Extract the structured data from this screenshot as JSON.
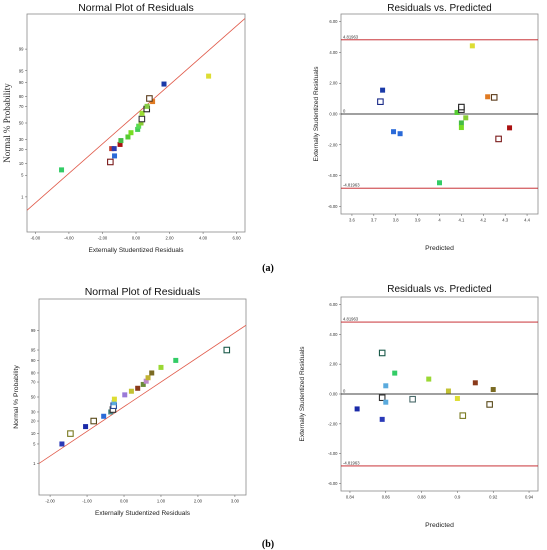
{
  "panel_labels": {
    "a": "(a)",
    "b": "(b)"
  },
  "colors": {
    "ref_line": "#e05a4a",
    "limit_line": "#c0161b",
    "zero_line": "#000000",
    "frame": "#8a8a8a"
  },
  "chart_data": [
    {
      "id": "a-normal",
      "type": "scatter",
      "title": "Normal Plot of Residuals",
      "xlabel": "Externally Studentized Residuals",
      "ylabel": "Normal % Probability",
      "xlim": [
        -6.5,
        6.5
      ],
      "x_ticks": [
        "-6.00",
        "-4.00",
        "-2.00",
        "0.00",
        "2.00",
        "4.00",
        "6.00"
      ],
      "x_tick_values": [
        -6,
        -4,
        -2,
        0,
        2,
        4,
        6
      ],
      "y_ticks": [
        "1",
        "5",
        "10",
        "20",
        "30",
        "50",
        "70",
        "80",
        "90",
        "95",
        "99"
      ],
      "y_tick_values": [
        1,
        5,
        10,
        20,
        30,
        50,
        70,
        80,
        90,
        95,
        99
      ],
      "ref_line": [
        [
          -6.5,
          0.3
        ],
        [
          6.5,
          99.95
        ]
      ],
      "points": [
        {
          "x": -4.44,
          "y": 7,
          "color": "#33cc66",
          "hollow": false
        },
        {
          "x": -1.53,
          "y": 11,
          "color": "#7a1a1a",
          "hollow": true
        },
        {
          "x": -1.28,
          "y": 15,
          "color": "#2a6ad8",
          "hollow": false
        },
        {
          "x": -1.45,
          "y": 21,
          "color": "#c0392b",
          "hollow": false
        },
        {
          "x": -1.3,
          "y": 21,
          "color": "#2a3ab0",
          "hollow": false
        },
        {
          "x": -0.95,
          "y": 25,
          "color": "#aa1111",
          "hollow": false
        },
        {
          "x": -0.9,
          "y": 29,
          "color": "#44bb44",
          "hollow": false
        },
        {
          "x": -0.48,
          "y": 33,
          "color": "#55cc33",
          "hollow": false
        },
        {
          "x": -0.3,
          "y": 38,
          "color": "#77dd22",
          "hollow": false
        },
        {
          "x": 0.1,
          "y": 42,
          "color": "#44cc55",
          "hollow": false
        },
        {
          "x": 0.16,
          "y": 46,
          "color": "#55dd55",
          "hollow": false
        },
        {
          "x": 0.3,
          "y": 50,
          "color": "#88cc33",
          "hollow": false
        },
        {
          "x": 0.35,
          "y": 55,
          "color": "#333333",
          "hollow": true
        },
        {
          "x": 0.36,
          "y": 62,
          "color": "#99dd33",
          "hollow": false
        },
        {
          "x": 0.64,
          "y": 67,
          "color": "#222222",
          "hollow": true
        },
        {
          "x": 0.66,
          "y": 70,
          "color": "#88cc44",
          "hollow": false
        },
        {
          "x": 0.99,
          "y": 75,
          "color": "#e07a22",
          "hollow": false
        },
        {
          "x": 0.8,
          "y": 78,
          "color": "#5a3a1a",
          "hollow": true
        },
        {
          "x": 1.67,
          "y": 89,
          "color": "#1a3aa8",
          "hollow": false
        },
        {
          "x": 4.33,
          "y": 93,
          "color": "#dddd33",
          "hollow": false
        }
      ]
    },
    {
      "id": "a-rvp",
      "type": "scatter",
      "title": "Residuals vs. Predicted",
      "xlabel": "Predicted",
      "ylabel": "Externally Studentized Residuals",
      "xlim": [
        3.55,
        4.45
      ],
      "ylim": [
        -6.5,
        6.5
      ],
      "x_ticks": [
        "3.6",
        "3.7",
        "3.8",
        "3.9",
        "4",
        "4.1",
        "4.2",
        "4.3",
        "4.4"
      ],
      "x_tick_values": [
        3.6,
        3.7,
        3.8,
        3.9,
        4.0,
        4.1,
        4.2,
        4.3,
        4.4
      ],
      "y_ticks": [
        "-6.00",
        "-4.00",
        "-2.00",
        "0.00",
        "2.00",
        "4.00",
        "6.00"
      ],
      "y_tick_values": [
        -6,
        -4,
        -2,
        0,
        2,
        4,
        6
      ],
      "limits": [
        4.81963,
        -4.81963
      ],
      "limit_labels": [
        "4.81963",
        "-4.81963"
      ],
      "zero_label": "0",
      "points": [
        {
          "x": 3.74,
          "y": 1.55,
          "color": "#1a3aa8",
          "hollow": false
        },
        {
          "x": 3.73,
          "y": 0.8,
          "color": "#1a2a88",
          "hollow": true
        },
        {
          "x": 3.79,
          "y": -1.15,
          "color": "#2a6ad8",
          "hollow": false
        },
        {
          "x": 3.82,
          "y": -1.28,
          "color": "#2a6ad8",
          "hollow": false
        },
        {
          "x": 4.0,
          "y": -4.47,
          "color": "#33cc66",
          "hollow": false
        },
        {
          "x": 4.08,
          "y": 0.1,
          "color": "#55cc33",
          "hollow": false
        },
        {
          "x": 4.1,
          "y": 0.28,
          "color": "#333333",
          "hollow": true
        },
        {
          "x": 4.1,
          "y": 0.45,
          "color": "#222222",
          "hollow": true
        },
        {
          "x": 4.1,
          "y": -0.58,
          "color": "#44bb44",
          "hollow": false
        },
        {
          "x": 4.1,
          "y": -0.88,
          "color": "#77dd22",
          "hollow": false
        },
        {
          "x": 4.12,
          "y": -0.25,
          "color": "#88cc33",
          "hollow": false
        },
        {
          "x": 4.15,
          "y": 4.43,
          "color": "#dddd33",
          "hollow": false
        },
        {
          "x": 4.22,
          "y": 1.12,
          "color": "#e07a22",
          "hollow": false
        },
        {
          "x": 4.25,
          "y": 1.08,
          "color": "#5a3a1a",
          "hollow": true
        },
        {
          "x": 4.27,
          "y": -1.62,
          "color": "#7a1a1a",
          "hollow": true
        },
        {
          "x": 4.32,
          "y": -0.9,
          "color": "#aa1111",
          "hollow": false
        }
      ]
    },
    {
      "id": "b-normal",
      "type": "scatter",
      "title": "Normal Plot of Residuals",
      "xlabel": "Externally Studentized Residuals",
      "ylabel": "Normal % Probability",
      "xlim": [
        -2.3,
        3.3
      ],
      "x_ticks": [
        "-2.00",
        "-1.00",
        "0.00",
        "1.00",
        "2.00",
        "3.00"
      ],
      "x_tick_values": [
        -2,
        -1,
        0,
        1,
        2,
        3
      ],
      "y_ticks": [
        "1",
        "5",
        "10",
        "20",
        "30",
        "50",
        "70",
        "80",
        "90",
        "95",
        "99"
      ],
      "y_tick_values": [
        1,
        5,
        10,
        20,
        30,
        50,
        70,
        80,
        90,
        95,
        99
      ],
      "ref_line": [
        [
          -2.3,
          1.0
        ],
        [
          3.3,
          99.4
        ]
      ],
      "points": [
        {
          "x": -1.68,
          "y": 5,
          "color": "#2a3ab8",
          "hollow": false
        },
        {
          "x": -1.45,
          "y": 10,
          "color": "#7a7a22",
          "hollow": true
        },
        {
          "x": -1.04,
          "y": 15,
          "color": "#1a2aa8",
          "hollow": false
        },
        {
          "x": -0.82,
          "y": 20,
          "color": "#5a4a1a",
          "hollow": true
        },
        {
          "x": -0.55,
          "y": 25,
          "color": "#2a6ad8",
          "hollow": false
        },
        {
          "x": -0.36,
          "y": 30,
          "color": "#4a8a8a",
          "hollow": false
        },
        {
          "x": -0.3,
          "y": 33,
          "color": "#333333",
          "hollow": true
        },
        {
          "x": -0.28,
          "y": 38,
          "color": "#2a4a9a",
          "hollow": true
        },
        {
          "x": -0.27,
          "y": 42,
          "color": "#5aaadd",
          "hollow": false
        },
        {
          "x": -0.26,
          "y": 47,
          "color": "#dddd33",
          "hollow": false
        },
        {
          "x": 0.02,
          "y": 53,
          "color": "#9a7ad8",
          "hollow": false
        },
        {
          "x": 0.2,
          "y": 58,
          "color": "#c2c233",
          "hollow": false
        },
        {
          "x": 0.37,
          "y": 62,
          "color": "#8a3a1a",
          "hollow": false
        },
        {
          "x": 0.52,
          "y": 67,
          "color": "#6a8a3a",
          "hollow": false
        },
        {
          "x": 0.6,
          "y": 71,
          "color": "#bb88cc",
          "hollow": false
        },
        {
          "x": 0.65,
          "y": 75,
          "color": "#c2b233",
          "hollow": false
        },
        {
          "x": 0.75,
          "y": 80,
          "color": "#7a6a22",
          "hollow": false
        },
        {
          "x": 1.0,
          "y": 85,
          "color": "#9ad833",
          "hollow": false
        },
        {
          "x": 1.4,
          "y": 90,
          "color": "#33cc66",
          "hollow": false
        },
        {
          "x": 2.78,
          "y": 95,
          "color": "#1a5a4a",
          "hollow": true
        }
      ]
    },
    {
      "id": "b-rvp",
      "type": "scatter",
      "title": "Residuals vs. Predicted",
      "xlabel": "Predicted",
      "ylabel": "Externally Studentized Residuals",
      "xlim": [
        0.835,
        0.945
      ],
      "ylim": [
        -6.5,
        6.5
      ],
      "x_ticks": [
        "0.84",
        "0.86",
        "0.88",
        "0.9",
        "0.92",
        "0.94"
      ],
      "x_tick_values": [
        0.84,
        0.86,
        0.88,
        0.9,
        0.92,
        0.94
      ],
      "y_ticks": [
        "-6.00",
        "-4.00",
        "-2.00",
        "0.00",
        "2.00",
        "4.00",
        "6.00"
      ],
      "y_tick_values": [
        -6,
        -4,
        -2,
        0,
        2,
        4,
        6
      ],
      "limits": [
        4.81963,
        -4.81963
      ],
      "limit_labels": [
        "4.81963",
        "-4.81963"
      ],
      "zero_label": "0",
      "points": [
        {
          "x": 0.844,
          "y": -1.0,
          "color": "#1a2aa8",
          "hollow": false
        },
        {
          "x": 0.858,
          "y": 2.75,
          "color": "#1a5a4a",
          "hollow": true
        },
        {
          "x": 0.858,
          "y": -0.25,
          "color": "#333333",
          "hollow": true
        },
        {
          "x": 0.858,
          "y": -1.7,
          "color": "#2a3ab8",
          "hollow": false
        },
        {
          "x": 0.86,
          "y": 0.55,
          "color": "#5aaadd",
          "hollow": false
        },
        {
          "x": 0.86,
          "y": -0.55,
          "color": "#5aaadd",
          "hollow": false
        },
        {
          "x": 0.865,
          "y": 1.4,
          "color": "#33cc66",
          "hollow": false
        },
        {
          "x": 0.875,
          "y": -0.35,
          "color": "#4a6a6a",
          "hollow": true
        },
        {
          "x": 0.884,
          "y": 1.0,
          "color": "#9ad833",
          "hollow": false
        },
        {
          "x": 0.895,
          "y": 0.2,
          "color": "#c2c233",
          "hollow": false
        },
        {
          "x": 0.9,
          "y": -0.3,
          "color": "#dddd33",
          "hollow": false
        },
        {
          "x": 0.903,
          "y": -1.45,
          "color": "#7a7a22",
          "hollow": true
        },
        {
          "x": 0.91,
          "y": 0.75,
          "color": "#8a3a1a",
          "hollow": false
        },
        {
          "x": 0.918,
          "y": -0.7,
          "color": "#5a4a1a",
          "hollow": true
        },
        {
          "x": 0.92,
          "y": 0.3,
          "color": "#7a6a22",
          "hollow": false
        }
      ]
    }
  ]
}
